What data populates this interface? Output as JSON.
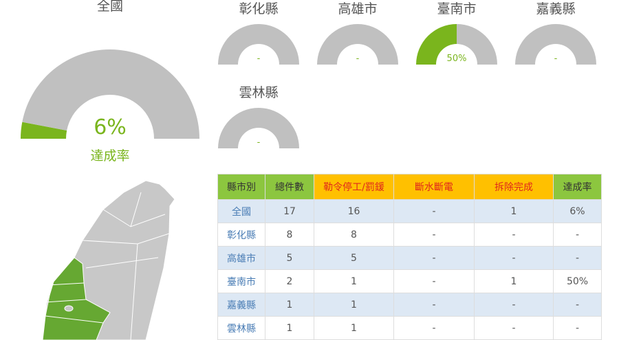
{
  "colors": {
    "fill": "#7ab51d",
    "empty": "#c0c0c0",
    "header_green": "#8cc63f",
    "header_orange": "#ffc000"
  },
  "national": {
    "title": "全國",
    "value_label": "6%",
    "rate": 6,
    "caption": "達成率"
  },
  "gauges": [
    {
      "title": "彰化縣",
      "value_label": "-",
      "rate": 0
    },
    {
      "title": "高雄市",
      "value_label": "-",
      "rate": 0
    },
    {
      "title": "臺南市",
      "value_label": "50%",
      "rate": 50
    },
    {
      "title": "嘉義縣",
      "value_label": "-",
      "rate": 0
    },
    {
      "title": "雲林縣",
      "value_label": "-",
      "rate": 0
    }
  ],
  "table": {
    "headers": [
      "縣市別",
      "總件數",
      "勒令停工/罰鍰",
      "斷水斷電",
      "拆除完成",
      "達成率"
    ],
    "rows": [
      [
        "全國",
        "17",
        "16",
        "-",
        "1",
        "6%"
      ],
      [
        "彰化縣",
        "8",
        "8",
        "-",
        "-",
        "-"
      ],
      [
        "高雄市",
        "5",
        "5",
        "-",
        "-",
        "-"
      ],
      [
        "臺南市",
        "2",
        "1",
        "-",
        "1",
        "50%"
      ],
      [
        "嘉義縣",
        "1",
        "1",
        "-",
        "-",
        "-"
      ],
      [
        "雲林縣",
        "1",
        "1",
        "-",
        "-",
        "-"
      ]
    ]
  }
}
